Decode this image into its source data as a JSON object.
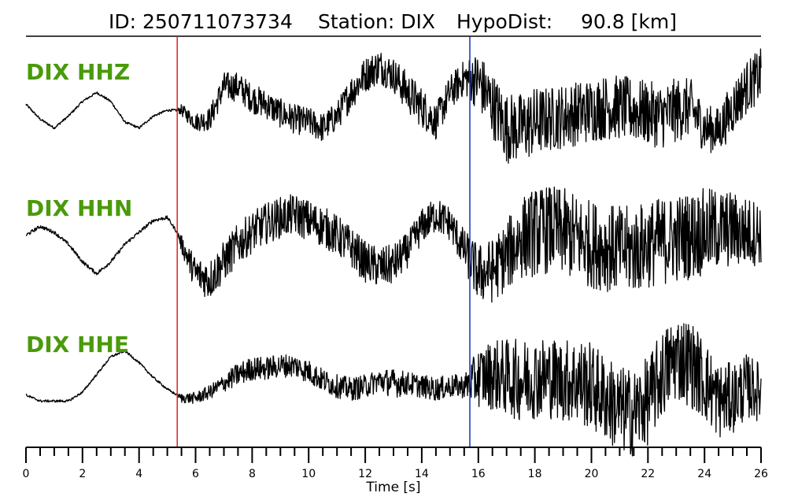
{
  "header": {
    "id_label": "ID: 250711073734",
    "station_label": "Station: DIX",
    "dist_label": "HypoDist:",
    "dist_value": "90.8 [km]"
  },
  "chart_data": {
    "type": "line",
    "xlabel": "Time [s]",
    "xlim": [
      0,
      26
    ],
    "major_ticks": [
      0,
      2,
      4,
      6,
      8,
      10,
      12,
      14,
      16,
      18,
      20,
      22,
      24,
      26
    ],
    "minor_tick_step": 0.5,
    "picks": [
      {
        "phase": "P",
        "time": 5.35,
        "color": "#e02020"
      },
      {
        "phase": "S",
        "time": 15.7,
        "color": "#1030c0"
      }
    ],
    "trace_color": "#000000",
    "label_color": "#4a9a0a",
    "series": [
      {
        "name": "DIX HHZ",
        "t": [
          0,
          0.5,
          1,
          1.5,
          2,
          2.5,
          3,
          3.5,
          4,
          4.5,
          5,
          5.35,
          5.5,
          6,
          6.5,
          7,
          7.5,
          8,
          8.5,
          9,
          9.5,
          10,
          10.5,
          11,
          11.5,
          12,
          12.5,
          13,
          13.5,
          14,
          14.5,
          15,
          15.5,
          16,
          16.5,
          17,
          17.5,
          18,
          18.5,
          19,
          19.5,
          20,
          20.5,
          21,
          21.5,
          22,
          22.5,
          23,
          23.5,
          24,
          24.5,
          25,
          25.5,
          26
        ],
        "values": [
          0.1,
          -0.15,
          -0.3,
          -0.1,
          0.15,
          0.3,
          0.15,
          -0.2,
          -0.3,
          -0.1,
          0,
          0,
          0,
          -0.2,
          -0.15,
          0.4,
          0.4,
          0.2,
          0.1,
          -0.05,
          -0.15,
          -0.2,
          -0.3,
          -0.1,
          0.3,
          0.6,
          0.75,
          0.6,
          0.3,
          0.05,
          -0.2,
          0.3,
          0.55,
          0.5,
          0.1,
          -0.3,
          -0.3,
          -0.2,
          -0.15,
          -0.1,
          -0.05,
          0,
          0.05,
          0.05,
          0,
          -0.05,
          -0.1,
          0,
          0.05,
          -0.3,
          -0.35,
          0.05,
          0.4,
          0.6
        ],
        "noise": [
          0.02,
          0.02,
          0.02,
          0.02,
          0.02,
          0.02,
          0.02,
          0.02,
          0.02,
          0.02,
          0.02,
          0.02,
          0.1,
          0.15,
          0.2,
          0.25,
          0.25,
          0.25,
          0.25,
          0.25,
          0.25,
          0.25,
          0.25,
          0.25,
          0.3,
          0.3,
          0.3,
          0.3,
          0.35,
          0.35,
          0.3,
          0.3,
          0.3,
          0.5,
          0.55,
          0.6,
          0.6,
          0.6,
          0.55,
          0.55,
          0.55,
          0.55,
          0.55,
          0.55,
          0.55,
          0.55,
          0.55,
          0.55,
          0.5,
          0.4,
          0.4,
          0.45,
          0.45,
          0.45
        ]
      },
      {
        "name": "DIX HHN",
        "t": [
          0,
          0.5,
          1,
          1.5,
          2,
          2.5,
          3,
          3.5,
          4,
          4.5,
          5,
          5.35,
          5.5,
          6,
          6.5,
          7,
          7.5,
          8,
          8.5,
          9,
          9.5,
          10,
          10.5,
          11,
          11.5,
          12,
          12.5,
          13,
          13.5,
          14,
          14.5,
          15,
          15.5,
          16,
          16.5,
          17,
          17.5,
          18,
          18.5,
          19,
          19.5,
          20,
          20.5,
          21,
          21.5,
          22,
          22.5,
          23,
          23.5,
          24,
          24.5,
          25,
          25.5,
          26
        ],
        "values": [
          0.15,
          0.3,
          0.2,
          0,
          -0.3,
          -0.5,
          -0.3,
          0,
          0.2,
          0.4,
          0.45,
          0.2,
          0,
          -0.5,
          -0.6,
          -0.3,
          0,
          0.2,
          0.35,
          0.45,
          0.5,
          0.4,
          0.3,
          0.15,
          -0.05,
          -0.3,
          -0.4,
          -0.35,
          -0.1,
          0.3,
          0.5,
          0.35,
          -0.1,
          -0.5,
          -0.45,
          -0.2,
          0.1,
          0.2,
          0.25,
          0.2,
          0.1,
          0,
          -0.05,
          -0.1,
          -0.1,
          0,
          0.05,
          0.1,
          0.15,
          0.2,
          0.25,
          0.25,
          0.2,
          0.2
        ],
        "noise": [
          0.03,
          0.03,
          0.03,
          0.03,
          0.03,
          0.03,
          0.03,
          0.03,
          0.03,
          0.03,
          0.03,
          0.03,
          0.15,
          0.3,
          0.35,
          0.35,
          0.35,
          0.35,
          0.35,
          0.35,
          0.35,
          0.35,
          0.35,
          0.35,
          0.35,
          0.35,
          0.35,
          0.35,
          0.3,
          0.3,
          0.3,
          0.3,
          0.35,
          0.5,
          0.55,
          0.6,
          0.7,
          0.75,
          0.75,
          0.75,
          0.75,
          0.75,
          0.75,
          0.75,
          0.75,
          0.75,
          0.75,
          0.75,
          0.75,
          0.75,
          0.7,
          0.65,
          0.6,
          0.55
        ]
      },
      {
        "name": "DIX HHE",
        "t": [
          0,
          0.5,
          1,
          1.5,
          2,
          2.5,
          3,
          3.5,
          4,
          4.5,
          5,
          5.35,
          5.5,
          6,
          6.5,
          7,
          7.5,
          8,
          8.5,
          9,
          9.5,
          10,
          10.5,
          11,
          11.5,
          12,
          12.5,
          13,
          13.5,
          14,
          14.5,
          15,
          15.5,
          16,
          16.5,
          17,
          17.5,
          18,
          18.5,
          19,
          19.5,
          20,
          20.5,
          21,
          21.5,
          22,
          22.5,
          23,
          23.5,
          24,
          24.5,
          25,
          25.5,
          26
        ],
        "values": [
          -0.25,
          -0.35,
          -0.35,
          -0.35,
          -0.2,
          0.1,
          0.4,
          0.5,
          0.3,
          0.05,
          -0.15,
          -0.25,
          -0.3,
          -0.3,
          -0.2,
          -0.05,
          0.1,
          0.2,
          0.2,
          0.25,
          0.25,
          0.15,
          0,
          -0.1,
          -0.15,
          -0.1,
          0,
          -0.05,
          -0.05,
          -0.1,
          -0.15,
          -0.1,
          -0.1,
          0.05,
          0.1,
          0.05,
          0,
          0.05,
          0.05,
          0,
          0,
          -0.1,
          -0.3,
          -0.5,
          -0.55,
          -0.35,
          0.1,
          0.4,
          0.3,
          0,
          -0.35,
          -0.3,
          -0.1,
          -0.2
        ],
        "noise": [
          0.02,
          0.02,
          0.02,
          0.02,
          0.02,
          0.02,
          0.02,
          0.02,
          0.02,
          0.02,
          0.02,
          0.02,
          0.08,
          0.1,
          0.12,
          0.15,
          0.2,
          0.2,
          0.2,
          0.2,
          0.2,
          0.2,
          0.2,
          0.2,
          0.2,
          0.2,
          0.2,
          0.25,
          0.2,
          0.2,
          0.2,
          0.2,
          0.2,
          0.5,
          0.6,
          0.65,
          0.7,
          0.7,
          0.7,
          0.7,
          0.75,
          0.75,
          0.75,
          0.75,
          0.75,
          0.75,
          0.75,
          0.75,
          0.75,
          0.7,
          0.65,
          0.6,
          0.55,
          0.5
        ]
      }
    ]
  }
}
